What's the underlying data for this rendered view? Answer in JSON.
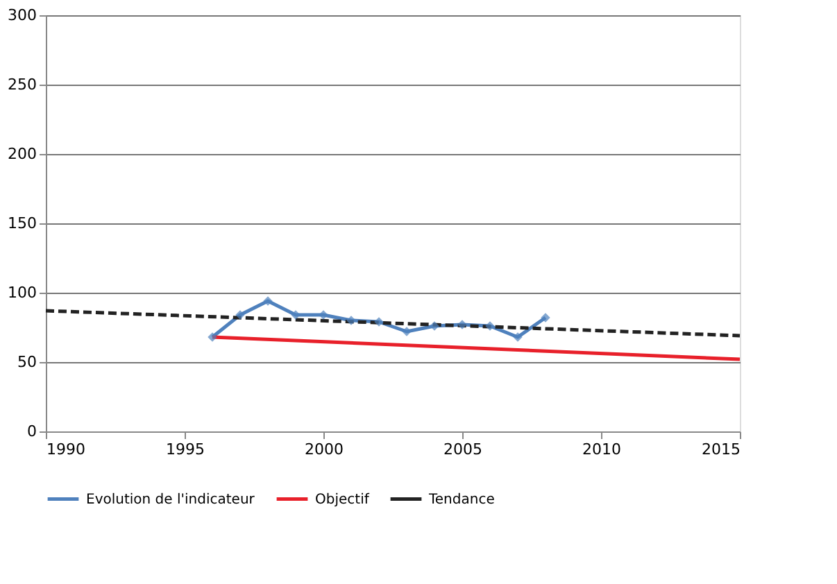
{
  "chart_data": {
    "type": "line",
    "xlim": [
      1990,
      2015
    ],
    "xticks": [
      1990,
      1995,
      2000,
      2005,
      2010,
      2015
    ],
    "ylim": [
      0,
      300
    ],
    "yticks": [
      0,
      50,
      100,
      150,
      200,
      250,
      300
    ],
    "grid": "y",
    "legend": "bottom",
    "series": [
      {
        "name": "Evolution de l'indicateur",
        "color": "#4f81bd",
        "marker": "diamond",
        "line_style": "solid",
        "x": [
          1996,
          1997,
          1998,
          1999,
          2000,
          2001,
          2002,
          2003,
          2004,
          2005,
          2006,
          2007,
          2008
        ],
        "values": [
          68,
          84,
          94,
          84,
          84,
          80,
          79,
          72,
          76,
          77,
          76,
          68,
          82
        ]
      },
      {
        "name": "Objectif",
        "color": "#e8202a",
        "marker": "none",
        "line_style": "solid",
        "x": [
          1996,
          2015
        ],
        "values": [
          68,
          52
        ]
      },
      {
        "name": "Tendance",
        "color": "#222222",
        "marker": "none",
        "line_style": "dashed",
        "x": [
          1990,
          2015
        ],
        "values": [
          87,
          69
        ]
      }
    ]
  }
}
